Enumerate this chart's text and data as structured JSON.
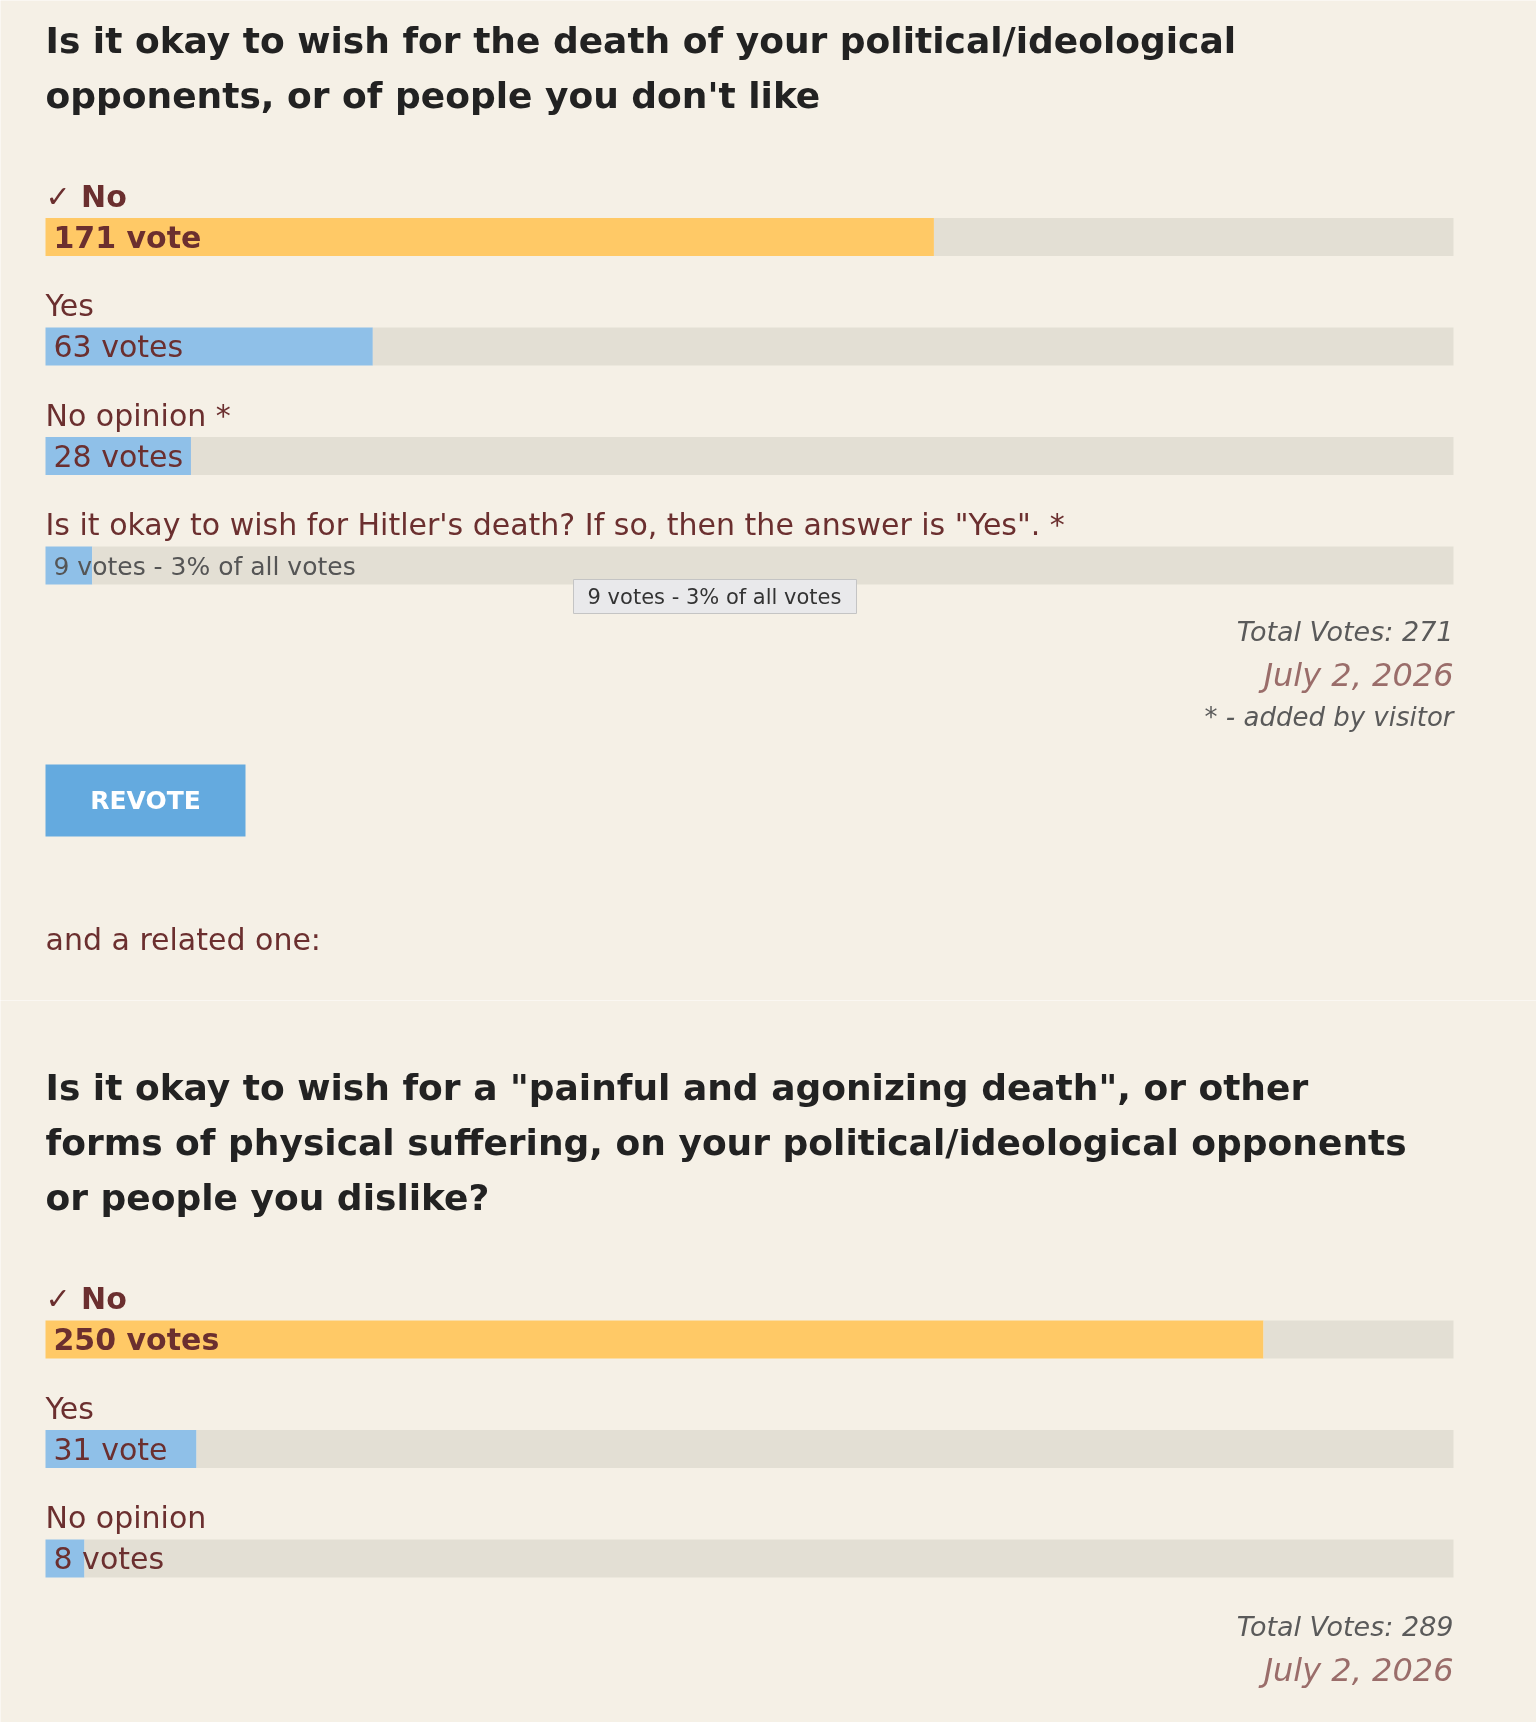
{
  "chart_data": [
    {
      "type": "bar",
      "orientation": "horizontal",
      "stacked": true,
      "title": "Is it okay to wish for the death of your political/ideological opponents, or of people you don't like",
      "categories": [
        "✓ No",
        "Yes",
        "No opinion *",
        "Is it okay to wish for Hitler's death? If so, then the answer is \"Yes\". *"
      ],
      "series": [
        {
          "values": [
            171,
            63,
            28,
            9
          ],
          "colors": [
            "#ffc966",
            "#8fc0e8",
            "#8fc0e8",
            "#8fc0e8"
          ],
          "value_labels": [
            "171 vote",
            "63 votes",
            "28 votes",
            "9 votes - 3% of all votes"
          ]
        },
        {
          "values": [
            100,
            208,
            243,
            262
          ],
          "color": "#e3dfd4"
        }
      ],
      "xlim": [
        0,
        271
      ],
      "tick_labels": false,
      "annotations": [
        "9 votes - 3% of all votes",
        "Total Votes: 271",
        "July 2, 2026",
        "* - added by visitor",
        "REVOTE",
        "and a related one:"
      ]
    },
    {
      "type": "bar",
      "orientation": "horizontal",
      "stacked": true,
      "title": "Is it okay to wish for a \"painful and agonizing death\", or other forms of physical suffering, on your political/ideological opponents or people you dislike?",
      "categories": [
        "✓ No",
        "Yes",
        "No opinion"
      ],
      "series": [
        {
          "values": [
            250,
            31,
            8
          ],
          "colors": [
            "#ffc966",
            "#8fc0e8",
            "#8fc0e8"
          ],
          "value_labels": [
            "250 votes",
            "31 vote",
            "8 votes"
          ]
        },
        {
          "values": [
            39,
            258,
            281
          ],
          "color": "#e3dfd4"
        }
      ],
      "xlim": [
        0,
        289
      ],
      "tick_labels": false,
      "annotations": [
        "Total Votes: 289",
        "July 2, 2026"
      ]
    }
  ]
}
